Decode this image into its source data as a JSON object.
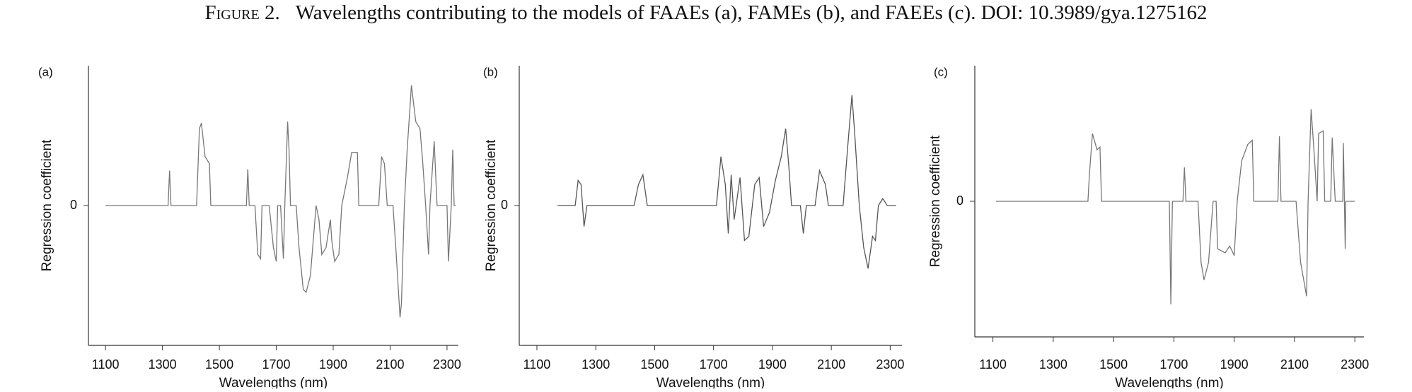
{
  "figure": {
    "label": "Figure 2.",
    "caption": "Wavelengths contributing to the models of FAAEs (a), FAMEs (b), and FAEEs (c). DOI: 10.3989/gya.1275162"
  },
  "chart_data": [
    {
      "type": "line",
      "title": "(a)",
      "xlabel": "Wavelengths (nm)",
      "ylabel": "Regression coefficient",
      "xlim": [
        1040,
        2340
      ],
      "xticks": [
        1100,
        1300,
        1500,
        1700,
        1900,
        2100,
        2300
      ],
      "ylim": [
        -1,
        1
      ],
      "yticks": [
        0
      ],
      "color": "#777777",
      "x": [
        1100,
        1320,
        1325,
        1330,
        1420,
        1430,
        1437,
        1450,
        1465,
        1470,
        1595,
        1600,
        1605,
        1625,
        1635,
        1645,
        1650,
        1675,
        1690,
        1700,
        1705,
        1715,
        1725,
        1730,
        1740,
        1745,
        1750,
        1770,
        1780,
        1795,
        1805,
        1820,
        1840,
        1850,
        1860,
        1875,
        1890,
        1895,
        1905,
        1920,
        1930,
        1950,
        1965,
        1985,
        1990,
        2060,
        2070,
        2080,
        2090,
        2110,
        2120,
        2135,
        2140,
        2150,
        2160,
        2175,
        2190,
        2205,
        2215,
        2225,
        2235,
        2240,
        2255,
        2265,
        2300,
        2305,
        2315,
        2320,
        2325,
        2330
      ],
      "values": [
        0,
        0,
        0.25,
        0,
        0,
        0.55,
        0.59,
        0.35,
        0.3,
        0,
        0,
        0.26,
        0,
        0,
        -0.35,
        -0.38,
        0,
        0,
        -0.3,
        -0.4,
        0,
        0,
        -0.38,
        0,
        0.6,
        0.4,
        0,
        0,
        -0.3,
        -0.6,
        -0.62,
        -0.5,
        0,
        -0.1,
        -0.35,
        -0.3,
        -0.1,
        -0.25,
        -0.4,
        -0.35,
        0,
        0.2,
        0.38,
        0.38,
        0,
        0,
        0.35,
        0.3,
        0,
        0,
        -0.3,
        -0.8,
        -0.7,
        0,
        0.4,
        0.86,
        0.6,
        0.55,
        0.3,
        0,
        -0.35,
        0,
        0.46,
        0,
        0,
        -0.4,
        0,
        0.4,
        0,
        0
      ]
    },
    {
      "type": "line",
      "title": "(b)",
      "xlabel": "Wavelengths (nm)",
      "ylabel": "Regression coefficient",
      "xlim": [
        1040,
        2340
      ],
      "xticks": [
        1100,
        1300,
        1500,
        1700,
        1900,
        2100,
        2300
      ],
      "ylim": [
        -1,
        1
      ],
      "yticks": [
        0
      ],
      "color": "#555555",
      "x": [
        1170,
        1230,
        1240,
        1250,
        1260,
        1270,
        1430,
        1445,
        1460,
        1475,
        1710,
        1725,
        1740,
        1750,
        1760,
        1770,
        1790,
        1805,
        1820,
        1840,
        1855,
        1870,
        1890,
        1910,
        1930,
        1945,
        1955,
        1965,
        1995,
        2005,
        2015,
        2045,
        2060,
        2080,
        2090,
        2140,
        2155,
        2170,
        2180,
        2195,
        2210,
        2225,
        2240,
        2250,
        2260,
        2275,
        2290,
        2320
      ],
      "values": [
        0,
        0,
        0.18,
        0.15,
        -0.15,
        0,
        0,
        0.15,
        0.22,
        0,
        0,
        0.35,
        0.15,
        -0.2,
        0.22,
        -0.1,
        0.2,
        -0.25,
        -0.22,
        0.15,
        0.2,
        -0.15,
        -0.05,
        0.18,
        0.35,
        0.55,
        0.3,
        0,
        0,
        -0.2,
        0,
        0,
        0.25,
        0.15,
        0,
        0,
        0.4,
        0.79,
        0.5,
        0,
        -0.3,
        -0.45,
        -0.22,
        -0.25,
        0,
        0.05,
        0,
        0
      ]
    },
    {
      "type": "line",
      "title": "(c)",
      "xlabel": "Wavelengths (nm)",
      "ylabel": "Regression coefficient",
      "xlim": [
        1040,
        2330
      ],
      "xticks": [
        1100,
        1300,
        1500,
        1700,
        1900,
        2100,
        2300
      ],
      "ylim": [
        -1,
        1
      ],
      "yticks": [
        0
      ],
      "color": "#777777",
      "x": [
        1110,
        1415,
        1420,
        1430,
        1445,
        1455,
        1460,
        1685,
        1690,
        1695,
        1730,
        1735,
        1740,
        1780,
        1790,
        1800,
        1815,
        1830,
        1840,
        1845,
        1870,
        1885,
        1900,
        1910,
        1925,
        1945,
        1960,
        1965,
        2045,
        2050,
        2055,
        2105,
        2120,
        2140,
        2145,
        2155,
        2165,
        2175,
        2180,
        2195,
        2200,
        2220,
        2225,
        2235,
        2260,
        2262,
        2268,
        2270,
        2300
      ],
      "values": [
        0,
        0,
        0.2,
        0.5,
        0.38,
        0.4,
        0,
        0,
        -0.76,
        0,
        0,
        0.25,
        0,
        0,
        -0.45,
        -0.58,
        -0.45,
        0,
        0,
        -0.35,
        -0.38,
        -0.33,
        -0.4,
        0,
        0.3,
        0.42,
        0.45,
        0,
        0,
        0.48,
        0,
        0,
        -0.45,
        -0.7,
        0,
        0.68,
        0.35,
        0,
        0.5,
        0.52,
        0,
        0,
        0.47,
        0,
        0,
        0.43,
        -0.35,
        0,
        0
      ]
    }
  ]
}
